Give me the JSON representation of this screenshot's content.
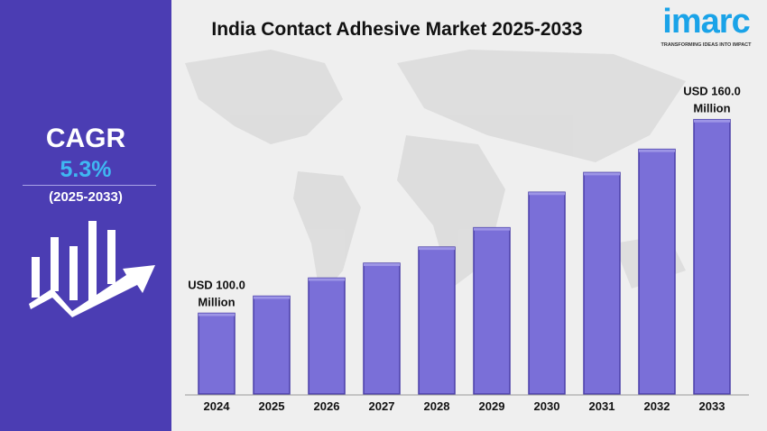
{
  "title": "India Contact Adhesive Market 2025-2033",
  "logo": {
    "word": "imarc",
    "tagline": "TRANSFORMING IDEAS INTO IMPACT"
  },
  "side": {
    "cagr_label": "CAGR",
    "cagr_value": "5.3%",
    "period": "(2025-2033)"
  },
  "colors": {
    "panel": "#4b3db3",
    "bar": "#7a6fd8",
    "accent": "#3fb8f2"
  },
  "chart_data": {
    "type": "bar",
    "categories": [
      "2024",
      "2025",
      "2026",
      "2027",
      "2028",
      "2029",
      "2030",
      "2031",
      "2032",
      "2033"
    ],
    "values": [
      100.0,
      105.3,
      110.9,
      115.5,
      120.5,
      126.5,
      137.5,
      143.6,
      150.8,
      160.0
    ],
    "unit": "USD Million",
    "annotations": [
      {
        "category": "2024",
        "line1": "USD 100.0",
        "line2": "Million"
      },
      {
        "category": "2033",
        "line1": "USD 160.0",
        "line2": "Million"
      }
    ],
    "grid": false
  }
}
